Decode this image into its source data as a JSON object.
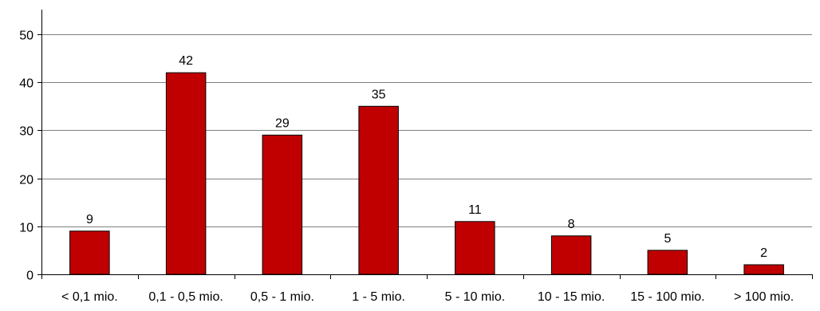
{
  "chart_data": {
    "type": "bar",
    "title": "",
    "xlabel": "",
    "ylabel": "",
    "categories": [
      "< 0,1 mio.",
      "0,1 - 0,5 mio.",
      "0,5 - 1 mio.",
      "1 - 5 mio.",
      "5 - 10 mio.",
      "10 - 15 mio.",
      "15 - 100 mio.",
      "> 100 mio."
    ],
    "values": [
      9,
      42,
      29,
      35,
      11,
      8,
      5,
      2
    ],
    "ylim": [
      0,
      50
    ],
    "yticks": [
      0,
      10,
      20,
      30,
      40,
      50
    ],
    "grid": true,
    "legend": "none",
    "data_labels": true,
    "colors": {
      "bar_fill": "#c00000",
      "bar_stroke": "#000000",
      "grid": "#808080",
      "axis": "#000000"
    }
  }
}
